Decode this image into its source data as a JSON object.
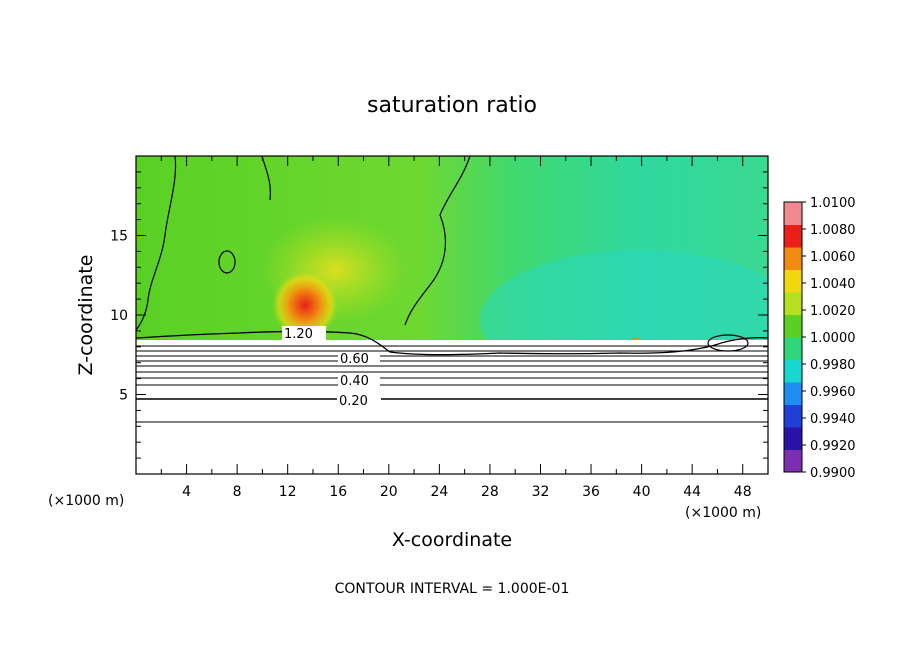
{
  "chart_data": {
    "type": "heatmap",
    "title": "saturation ratio",
    "xlabel": "X-coordinate",
    "ylabel": "Z-coordinate",
    "x_unit": "(×1000 m)",
    "y_unit": "(×1000 m)",
    "xlim": [
      0,
      50
    ],
    "ylim": [
      0,
      20
    ],
    "x_ticks": [
      "4",
      "8",
      "12",
      "16",
      "20",
      "24",
      "28",
      "32",
      "36",
      "40",
      "44",
      "48"
    ],
    "y_ticks": [
      "5",
      "10",
      "15"
    ],
    "colorbar": {
      "min": 0.99,
      "max": 1.01,
      "tick_labels": [
        "1.0100",
        "1.0080",
        "1.0060",
        "1.0040",
        "1.0020",
        "1.0000",
        "0.9980",
        "0.9960",
        "0.9940",
        "0.9920",
        "0.9900"
      ],
      "colors": [
        "#7b2fb0",
        "#2a12a8",
        "#1f3fd8",
        "#1e8ef0",
        "#19d8d0",
        "#2fd77a",
        "#5ad025",
        "#b4e020",
        "#f0d810",
        "#f08a10",
        "#e82018",
        "#f08a90"
      ]
    },
    "contour_labels": [
      "1.20",
      "0.60",
      "0.40",
      "0.20"
    ],
    "contour_interval_text": "CONTOUR INTERVAL = 1.000E-01"
  }
}
